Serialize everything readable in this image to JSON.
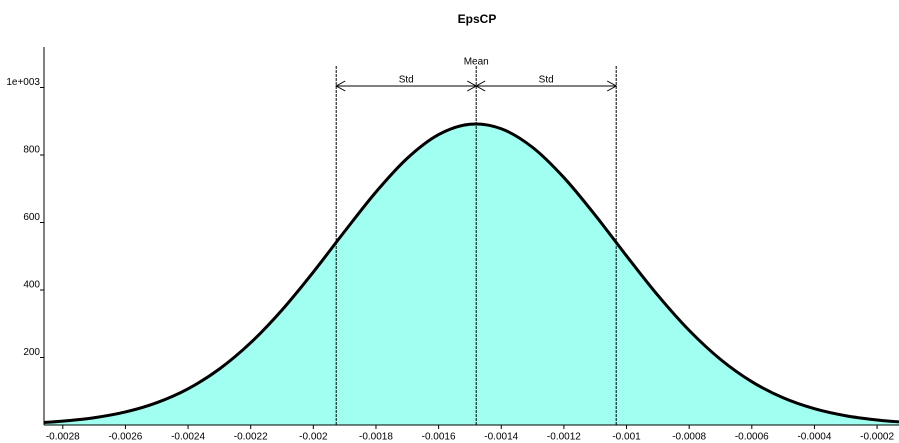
{
  "chart_data": {
    "type": "area",
    "title": "EpsCP",
    "x": [
      -0.00286,
      -0.0028,
      -0.0027,
      -0.0026,
      -0.0025,
      -0.0024,
      -0.0023,
      -0.0022,
      -0.0021,
      -0.002,
      -0.0019,
      -0.0018,
      -0.0017,
      -0.0016,
      -0.0015,
      -0.0014,
      -0.0013,
      -0.0012,
      -0.0011,
      -0.001,
      -0.0009,
      -0.0008,
      -0.0007,
      -0.0006,
      -0.0005,
      -0.0004,
      -0.0003,
      -0.0002,
      -0.00013
    ],
    "values": [
      7.6,
      11.4,
      21.5,
      38.6,
      66.1,
      107.3,
      165.9,
      243.8,
      340.9,
      453.3,
      573.7,
      690.4,
      790.3,
      860.4,
      891.1,
      877.8,
      822.6,
      733.2,
      621.7,
      501.0,
      384.3,
      280.4,
      194.5,
      128.4,
      80.6,
      48.2,
      27.4,
      14.8,
      9.3
    ],
    "color": "#a0fff0",
    "line_color": "#000000",
    "xlim": [
      -0.00286,
      -0.00013
    ],
    "xticks": [
      -0.0028,
      -0.0026,
      -0.0024,
      -0.0022,
      -0.002,
      -0.0018,
      -0.0016,
      -0.0014,
      -0.0012,
      -0.001,
      -0.0008,
      -0.0006,
      -0.0004,
      -0.0002
    ],
    "ylim": [
      0,
      1120
    ],
    "yticks": [
      200,
      400,
      600,
      800,
      {
        "value": 1000,
        "label": "1e+003"
      }
    ],
    "annotations": {
      "mean": -0.00148,
      "std": 0.000447,
      "mean_label": "Mean",
      "std_label": "Std"
    }
  }
}
